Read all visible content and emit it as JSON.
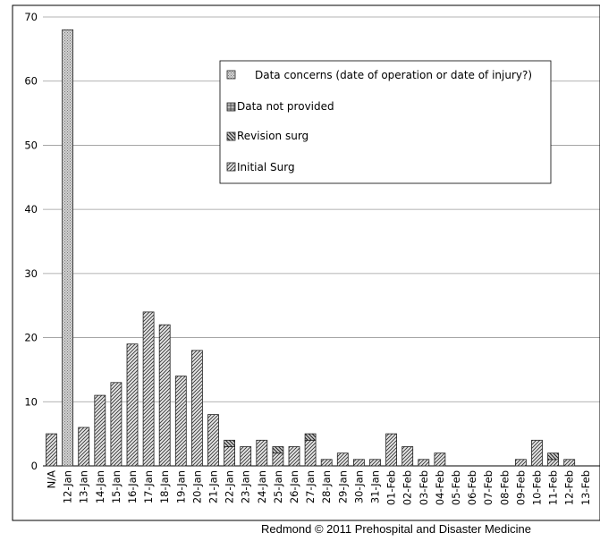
{
  "chart_data": {
    "type": "bar",
    "stacked": true,
    "categories": [
      "N/A",
      "12-Jan",
      "13-Jan",
      "14-Jan",
      "15-Jan",
      "16-Jan",
      "17-Jan",
      "18-Jan",
      "19-Jan",
      "20-Jan",
      "21-Jan",
      "22-Jan",
      "23-Jan",
      "24-Jan",
      "25-Jan",
      "26-Jan",
      "27-Jan",
      "28-Jan",
      "29-Jan",
      "30-Jan",
      "31-Jan",
      "01-Feb",
      "02-Feb",
      "03-Feb",
      "04-Feb",
      "05-Feb",
      "06-Feb",
      "07-Feb",
      "08-Feb",
      "09-Feb",
      "10-Feb",
      "11-Feb",
      "12-Feb",
      "13-Feb"
    ],
    "series": [
      {
        "name": "Initial Surg",
        "values": [
          5,
          0,
          6,
          11,
          13,
          19,
          24,
          22,
          14,
          18,
          8,
          3,
          3,
          4,
          2,
          3,
          4,
          1,
          2,
          1,
          1,
          5,
          3,
          1,
          2,
          0,
          0,
          0,
          0,
          1,
          4,
          1,
          1,
          0
        ]
      },
      {
        "name": "Revision surg",
        "values": [
          0,
          0,
          0,
          0,
          0,
          0,
          0,
          0,
          0,
          0,
          0,
          1,
          0,
          0,
          1,
          0,
          1,
          0,
          0,
          0,
          0,
          0,
          0,
          0,
          0,
          0,
          0,
          0,
          0,
          0,
          0,
          1,
          0,
          0
        ]
      },
      {
        "name": "Data not provided",
        "values": [
          0,
          0,
          0,
          0,
          0,
          0,
          0,
          0,
          0,
          0,
          0,
          0,
          0,
          0,
          0,
          0,
          0,
          0,
          0,
          0,
          0,
          0,
          0,
          0,
          0,
          0,
          0,
          0,
          0,
          0,
          0,
          0,
          0,
          0
        ]
      },
      {
        "name": "Data concerns (date of operation or date of injury?)",
        "values": [
          0,
          68,
          0,
          0,
          0,
          0,
          0,
          0,
          0,
          0,
          0,
          0,
          0,
          0,
          0,
          0,
          0,
          0,
          0,
          0,
          0,
          0,
          0,
          0,
          0,
          0,
          0,
          0,
          0,
          0,
          0,
          0,
          0,
          0
        ]
      }
    ],
    "legend_order": [
      "Data concerns (date of operation or date of injury?)",
      "Data not provided",
      "Revision surg",
      "Initial Surg"
    ],
    "ylim": [
      0,
      70
    ],
    "yticks": [
      0,
      10,
      20,
      30,
      40,
      50,
      60,
      70
    ],
    "grid": "horizontal",
    "legend_position": "upper-right inside plot",
    "title": "",
    "xlabel": "",
    "ylabel": "",
    "colors": {
      "frame": "#000000",
      "grid": "#9a9a9a",
      "bar_fill": "#d8d8d8",
      "bar_stroke": "#222222",
      "hatch": "#333333"
    }
  },
  "credit": "Redmond © 2011 Prehospital and Disaster Medicine"
}
